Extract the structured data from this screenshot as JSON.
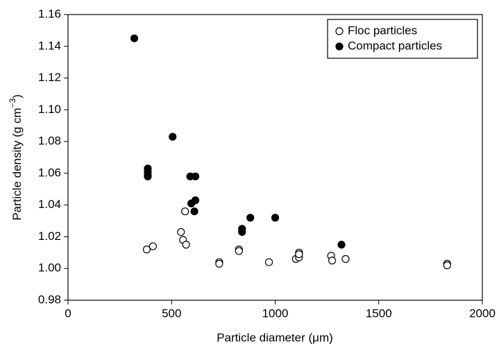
{
  "chart_data": {
    "type": "scatter",
    "xlabel": "Particle diameter (μm)",
    "ylabel": "Particle density (g cm",
    "ylabel_sup": "−3",
    "ylabel_end": ")",
    "xlim": [
      0,
      2000
    ],
    "xticks": [
      0,
      500,
      1000,
      1500,
      2000
    ],
    "ylim": [
      0.98,
      1.16
    ],
    "yticks": [
      {
        "value": 0.98,
        "label": "0.98"
      },
      {
        "value": 1.0,
        "label": "1.00"
      },
      {
        "value": 1.02,
        "label": "1.02"
      },
      {
        "value": 1.04,
        "label": "1.04"
      },
      {
        "value": 1.06,
        "label": "1.06"
      },
      {
        "value": 1.08,
        "label": "1.08"
      },
      {
        "value": 1.1,
        "label": "1.10"
      },
      {
        "value": 1.12,
        "label": "1.12"
      },
      {
        "value": 1.14,
        "label": "1.14"
      },
      {
        "value": 1.16,
        "label": "1.16"
      }
    ],
    "legend": "upper right",
    "series": [
      {
        "name": "Floc particles",
        "color": "#000000",
        "filled": false,
        "x": [
          380,
          410,
          565,
          545,
          555,
          570,
          730,
          730,
          825,
          825,
          970,
          1100,
          1115,
          1115,
          1115,
          1270,
          1275,
          1340,
          1830,
          1830
        ],
        "values": [
          1.012,
          1.014,
          1.036,
          1.023,
          1.018,
          1.015,
          1.004,
          1.003,
          1.012,
          1.011,
          1.004,
          1.006,
          1.007,
          1.01,
          1.009,
          1.008,
          1.005,
          1.006,
          1.003,
          1.002
        ]
      },
      {
        "name": "Compact particles",
        "color": "#000000",
        "filled": true,
        "x": [
          320,
          385,
          385,
          385,
          385,
          505,
          590,
          615,
          595,
          615,
          610,
          840,
          840,
          880,
          1000,
          1320
        ],
        "values": [
          1.145,
          1.063,
          1.061,
          1.059,
          1.058,
          1.083,
          1.058,
          1.058,
          1.041,
          1.043,
          1.036,
          1.025,
          1.023,
          1.032,
          1.032,
          1.015
        ]
      }
    ]
  }
}
